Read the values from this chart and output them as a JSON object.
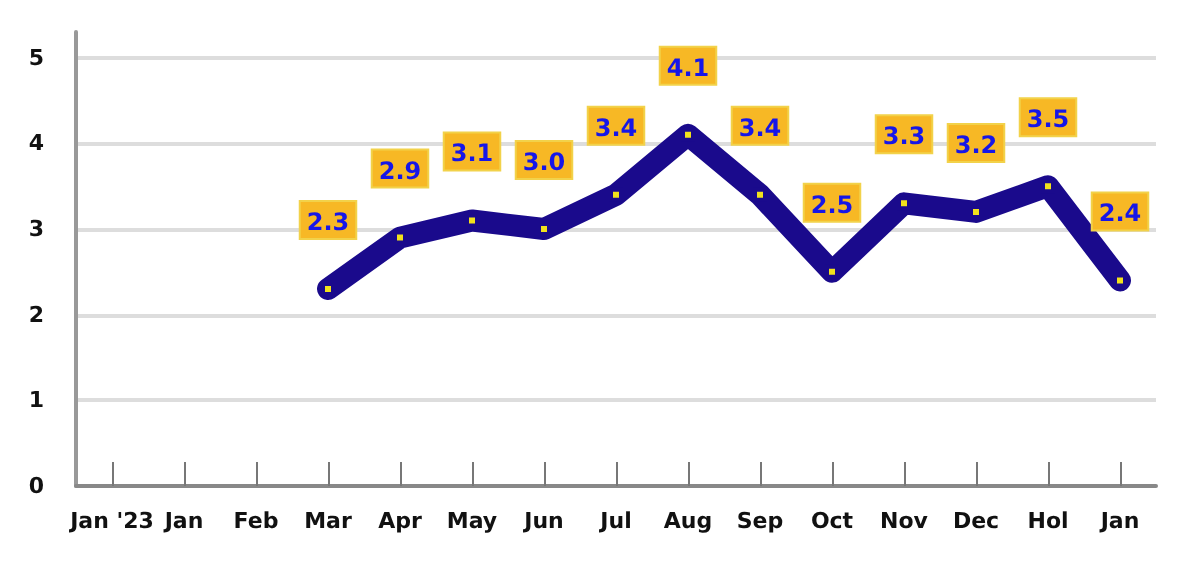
{
  "chart_data": {
    "type": "line",
    "categories": [
      "Jan '23",
      "Jan",
      "Feb",
      "Mar",
      "Apr",
      "May",
      "Jun",
      "Jul",
      "Aug",
      "Sep",
      "Oct",
      "Nov",
      "Dec",
      "Hol",
      "Jan"
    ],
    "series": [
      {
        "color": "#1a0a8c",
        "values": [
          null,
          null,
          null,
          2.3,
          2.9,
          3.1,
          3.0,
          3.4,
          4.1,
          3.4,
          2.5,
          3.3,
          3.2,
          3.5,
          2.4
        ],
        "value_labels": [
          null,
          null,
          null,
          "2.3",
          "2.9",
          "3.1",
          "3.0",
          "3.4",
          "4.1",
          "3.4",
          "2.5",
          "3.3",
          "3.2",
          "3.5",
          "2.4"
        ]
      }
    ],
    "ylim": [
      0,
      5.3
    ],
    "yticks": [
      0,
      1,
      2,
      3,
      4,
      5
    ],
    "grid": "y",
    "marker": "square"
  }
}
